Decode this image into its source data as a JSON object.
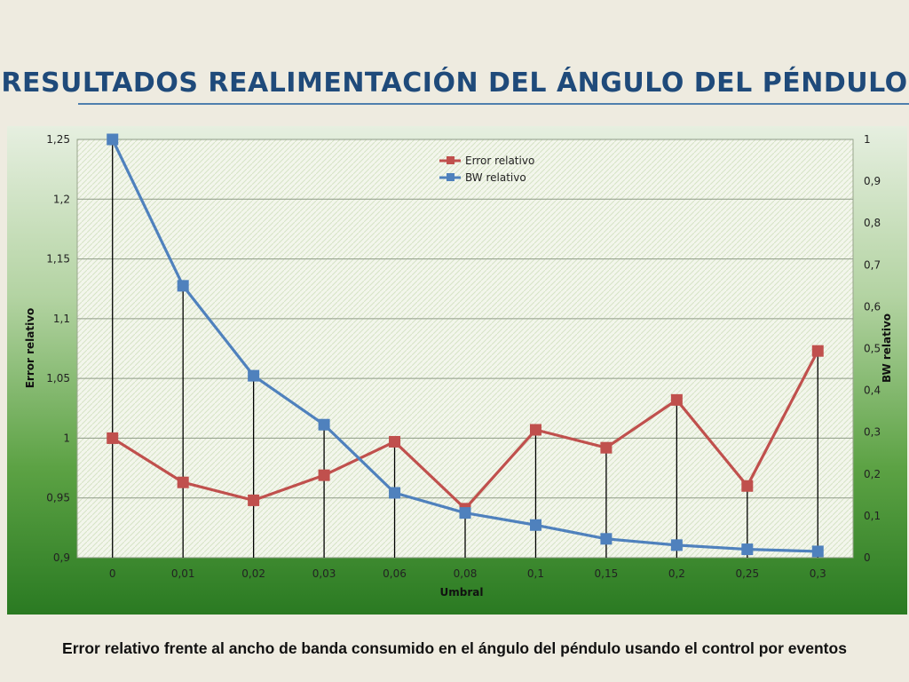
{
  "slide": {
    "title": "RESULTADOS REALIMENTACIÓN DEL ÁNGULO DEL PÉNDULO",
    "caption": "Error relativo frente al ancho de banda consumido en el ángulo del péndulo usando el control por eventos"
  },
  "colors": {
    "title": "#1f4a7a",
    "error_series": "#c0504d",
    "bw_series": "#4f81bd",
    "panel_top": "#e6efe0",
    "panel_bottom": "#2a7a22"
  },
  "chart_data": {
    "type": "line",
    "title": "",
    "xlabel": "Umbral",
    "ylabel": "Error relativo",
    "y2label": "BW relativo",
    "categories": [
      "0",
      "0,01",
      "0,02",
      "0,03",
      "0,06",
      "0,08",
      "0,1",
      "0,15",
      "0,2",
      "0,25",
      "0,3"
    ],
    "ylim": [
      0.9,
      1.25
    ],
    "y_ticks": [
      0.9,
      0.95,
      1,
      1.05,
      1.1,
      1.15,
      1.2,
      1.25
    ],
    "y_tick_labels": [
      "0,9",
      "0,95",
      "1",
      "1,05",
      "1,1",
      "1,15",
      "1,2",
      "1,25"
    ],
    "y2lim": [
      0,
      1
    ],
    "y2_ticks": [
      0,
      0.1,
      0.2,
      0.3,
      0.4,
      0.5,
      0.6,
      0.7,
      0.8,
      0.9,
      1
    ],
    "y2_tick_labels": [
      "0",
      "0,1",
      "0,2",
      "0,3",
      "0,4",
      "0,5",
      "0,6",
      "0,7",
      "0,8",
      "0,9",
      "1"
    ],
    "grid": true,
    "legend_position": "top-center",
    "drop_lines": true,
    "series": [
      {
        "name": "Error relativo",
        "axis": "left",
        "color": "#c0504d",
        "values": [
          1.0,
          0.963,
          0.948,
          0.969,
          0.997,
          0.941,
          1.007,
          0.992,
          1.032,
          0.96,
          1.073
        ]
      },
      {
        "name": "BW relativo",
        "axis": "right",
        "color": "#4f81bd",
        "values": [
          1.0,
          0.65,
          0.435,
          0.318,
          0.155,
          0.107,
          0.078,
          0.045,
          0.03,
          0.02,
          0.015
        ]
      }
    ]
  }
}
